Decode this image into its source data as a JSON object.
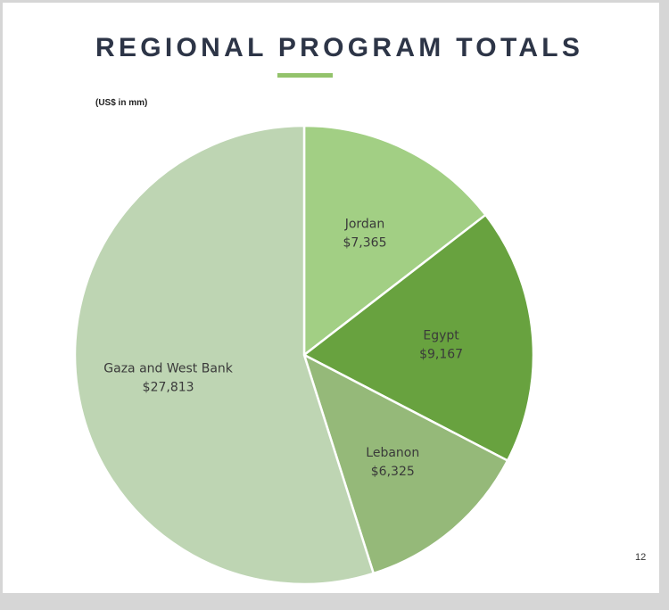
{
  "slide": {
    "title": "REGIONAL PROGRAM TOTALS",
    "subtitle": "(US$ in mm)",
    "page_number": "12"
  },
  "colors": {
    "title": "#2d3547",
    "accent": "#93c36b",
    "slice_border": "#ffffff"
  },
  "chart_data": {
    "type": "pie",
    "title": "REGIONAL PROGRAM TOTALS",
    "unit": "(US$ in mm)",
    "start_angle_deg": 0,
    "direction": "clockwise",
    "slices": [
      {
        "label": "Jordan",
        "value": 7365,
        "value_label": "$7,365",
        "color": "#a2cf84"
      },
      {
        "label": "Egypt",
        "value": 9167,
        "value_label": "$9,167",
        "color": "#68a23f"
      },
      {
        "label": "Lebanon",
        "value": 6325,
        "value_label": "$6,325",
        "color": "#95b979"
      },
      {
        "label": "Gaza and West Bank",
        "value": 27813,
        "value_label": "$27,813",
        "color": "#bed5b3"
      }
    ]
  }
}
